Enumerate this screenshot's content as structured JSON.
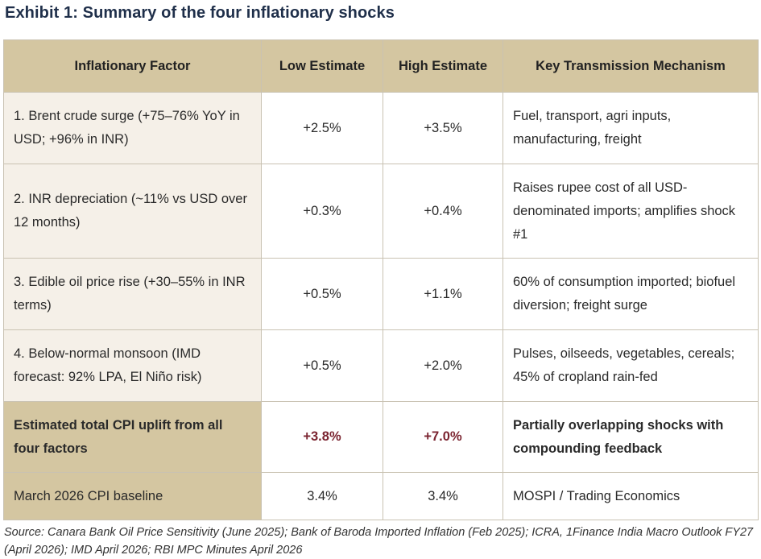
{
  "title": "Exhibit 1: Summary of the four inflationary shocks",
  "table": {
    "headers": [
      "Inflationary Factor",
      "Low Estimate",
      "High Estimate",
      "Key Transmission Mechanism"
    ],
    "rows": [
      {
        "factor": "1. Brent crude surge (+75–76% YoY in USD; +96% in INR)",
        "low": "+2.5%",
        "high": "+3.5%",
        "mechanism": "Fuel, transport, agri inputs, manufacturing, freight"
      },
      {
        "factor": "2. INR depreciation (~11% vs USD over 12 months)",
        "low": "+0.3%",
        "high": "+0.4%",
        "mechanism": "Raises rupee cost of all USD-denominated imports; amplifies shock #1"
      },
      {
        "factor": "3. Edible oil price rise (+30–55% in INR terms)",
        "low": "+0.5%",
        "high": "+1.1%",
        "mechanism": "60% of consumption imported; biofuel diversion; freight surge"
      },
      {
        "factor": "4. Below-normal monsoon (IMD forecast: 92% LPA, El Niño risk)",
        "low": "+0.5%",
        "high": "+2.0%",
        "mechanism": "Pulses, oilseeds, vegetables, cereals; 45% of cropland rain-fed"
      }
    ],
    "total": {
      "factor": "Estimated total CPI uplift from all four factors",
      "low": "+3.8%",
      "high": "+7.0%",
      "mechanism": "Partially overlapping shocks with compounding feedback"
    },
    "baseline": {
      "factor": "March 2026 CPI baseline",
      "low": "3.4%",
      "high": "3.4%",
      "mechanism": "MOSPI / Trading Economics"
    }
  },
  "source": {
    "label": "Source:",
    "text": " Canara Bank Oil Price Sensitivity (June 2025); Bank of Baroda Imported Inflation (Feb 2025); ICRA, 1Finance India Macro Outlook FY27 (April 2026); IMD April 2026; RBI MPC Minutes April 2026"
  },
  "colors": {
    "title": "#1f2f4a",
    "header_bg": "#d4c6a1",
    "factor_bg": "#f5f0e8",
    "total_value": "#7b2430",
    "border": "#c9c2b2"
  }
}
